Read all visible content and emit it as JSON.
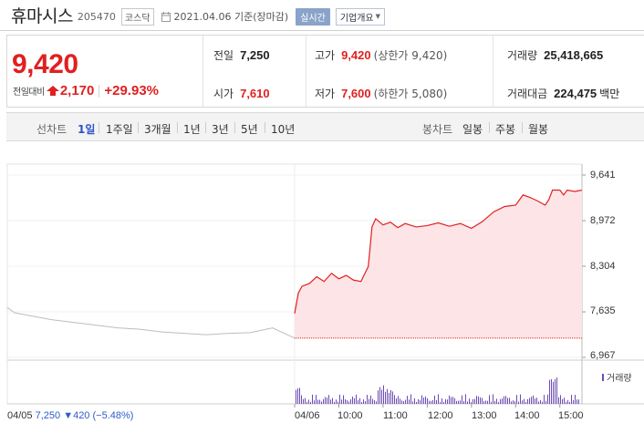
{
  "header": {
    "stock_name": "휴마시스",
    "stock_code": "205470",
    "market": "코스닥",
    "date_text": "2021.04.06 기준(장마감)",
    "realtime_label": "실시간",
    "overview_label": "기업개요"
  },
  "summary": {
    "current_price": "9,420",
    "change_label": "전일대비",
    "change_value": "2,170",
    "change_pct": "+29.93%",
    "prev_close_label": "전일",
    "prev_close": "7,250",
    "open_label": "시가",
    "open": "7,610",
    "high_label": "고가",
    "high": "9,420",
    "high_note": "(상한가 9,420)",
    "low_label": "저가",
    "low": "7,600",
    "low_note": "(하한가 5,080)",
    "volume_label": "거래량",
    "volume": "25,418,665",
    "amount_label": "거래대금",
    "amount": "224,475",
    "amount_unit": "백만"
  },
  "tabs": {
    "line_label": "선차트",
    "line_items": [
      "1일",
      "1주일",
      "3개월",
      "1년",
      "3년",
      "5년",
      "10년"
    ],
    "active": "1일",
    "candle_label": "봉차트",
    "candle_items": [
      "일봉",
      "주봉",
      "월봉"
    ]
  },
  "colors": {
    "up": "#e02020",
    "down": "#2f5cc8",
    "active_tab": "#2f54c5",
    "volume": "#6c4bb3",
    "area_fill": "#fde4e6"
  },
  "icons": {
    "change": "up-triangle-icon",
    "date": "clock-icon",
    "dropdown": "chevron-down-icon"
  },
  "chart_data": {
    "type": "line",
    "y_ticks": [
      "9,641",
      "8,972",
      "8,304",
      "7,635",
      "6,967"
    ],
    "ylim": [
      6967,
      9641
    ],
    "x_ticks": [
      "04/05",
      "04/06",
      "10:00",
      "11:00",
      "12:00",
      "13:00",
      "14:00",
      "15:00"
    ],
    "prev_day": {
      "label": "04/05",
      "close": "7,250",
      "change": "▼420",
      "change_pct": "(−5.48%)"
    },
    "prev_day_series": [
      [
        "09:00",
        7700
      ],
      [
        "09:10",
        7620
      ],
      [
        "09:30",
        7580
      ],
      [
        "10:00",
        7520
      ],
      [
        "10:30",
        7480
      ],
      [
        "11:00",
        7440
      ],
      [
        "11:30",
        7400
      ],
      [
        "12:00",
        7380
      ],
      [
        "12:30",
        7340
      ],
      [
        "13:00",
        7320
      ],
      [
        "13:30",
        7300
      ],
      [
        "14:00",
        7320
      ],
      [
        "14:30",
        7330
      ],
      [
        "15:00",
        7400
      ],
      [
        "15:30",
        7250
      ]
    ],
    "today_series": [
      [
        "09:00",
        7610
      ],
      [
        "09:05",
        7910
      ],
      [
        "09:10",
        8010
      ],
      [
        "09:20",
        8050
      ],
      [
        "09:30",
        8150
      ],
      [
        "09:40",
        8080
      ],
      [
        "09:50",
        8200
      ],
      [
        "10:00",
        8120
      ],
      [
        "10:10",
        8170
      ],
      [
        "10:20",
        8100
      ],
      [
        "10:30",
        8080
      ],
      [
        "10:40",
        8300
      ],
      [
        "10:45",
        8880
      ],
      [
        "10:50",
        9000
      ],
      [
        "11:00",
        8910
      ],
      [
        "11:10",
        8950
      ],
      [
        "11:20",
        8870
      ],
      [
        "11:30",
        8930
      ],
      [
        "11:45",
        8880
      ],
      [
        "12:00",
        8900
      ],
      [
        "12:15",
        8940
      ],
      [
        "12:30",
        8890
      ],
      [
        "12:45",
        8930
      ],
      [
        "13:00",
        8860
      ],
      [
        "13:15",
        8960
      ],
      [
        "13:30",
        9100
      ],
      [
        "13:45",
        9180
      ],
      [
        "14:00",
        9200
      ],
      [
        "14:10",
        9350
      ],
      [
        "14:20",
        9310
      ],
      [
        "14:30",
        9260
      ],
      [
        "14:40",
        9200
      ],
      [
        "14:45",
        9280
      ],
      [
        "14:50",
        9420
      ],
      [
        "15:00",
        9420
      ],
      [
        "15:05",
        9350
      ],
      [
        "15:10",
        9420
      ],
      [
        "15:20",
        9400
      ],
      [
        "15:30",
        9420
      ]
    ],
    "volume_label": "거래량",
    "grid": true
  }
}
